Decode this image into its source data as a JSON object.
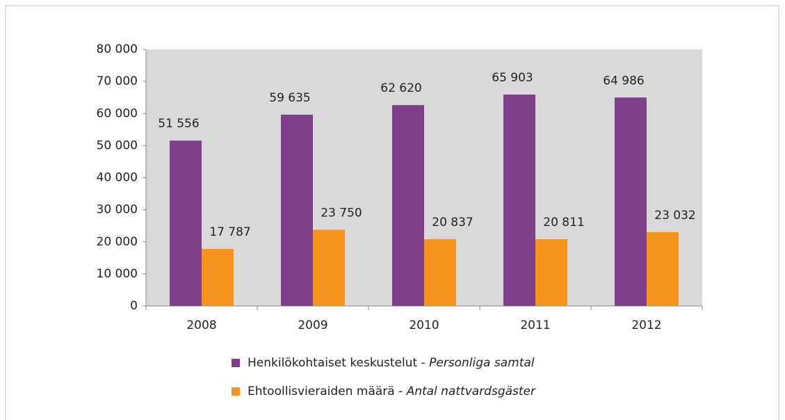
{
  "chart_data": {
    "type": "bar",
    "categories": [
      "2008",
      "2009",
      "2010",
      "2011",
      "2012"
    ],
    "series": [
      {
        "name": "Henkilökohtaiset keskustelut - Personliga samtal",
        "color": "#7f3f8b",
        "values": [
          51556,
          59635,
          62620,
          65903,
          64986
        ],
        "value_labels": [
          "51 556",
          "59 635",
          "62 620",
          "65 903",
          "64 986"
        ]
      },
      {
        "name": "Ehtoollisvieraiden määrä - Antal nattvardsgäster",
        "color": "#f7941d",
        "values": [
          17787,
          23750,
          20837,
          20811,
          23032
        ],
        "value_labels": [
          "17 787",
          "23 750",
          "20 837",
          "20 811",
          "23 032"
        ]
      }
    ],
    "ylim": [
      0,
      80000
    ],
    "yticks": [
      0,
      {
        "value": 10000,
        "label": "10 000"
      },
      {
        "value": 20000,
        "label": "20 000"
      },
      {
        "value": 30000,
        "label": "30 000"
      },
      {
        "value": 40000,
        "label": "40 000"
      },
      {
        "value": 50000,
        "label": "50 000"
      },
      {
        "value": 60000,
        "label": "60 000"
      },
      {
        "value": 70000,
        "label": "70 000"
      },
      {
        "value": 80000,
        "label": "80 000"
      }
    ],
    "plot_background": "#d9d9d9",
    "legend": "bottom"
  }
}
